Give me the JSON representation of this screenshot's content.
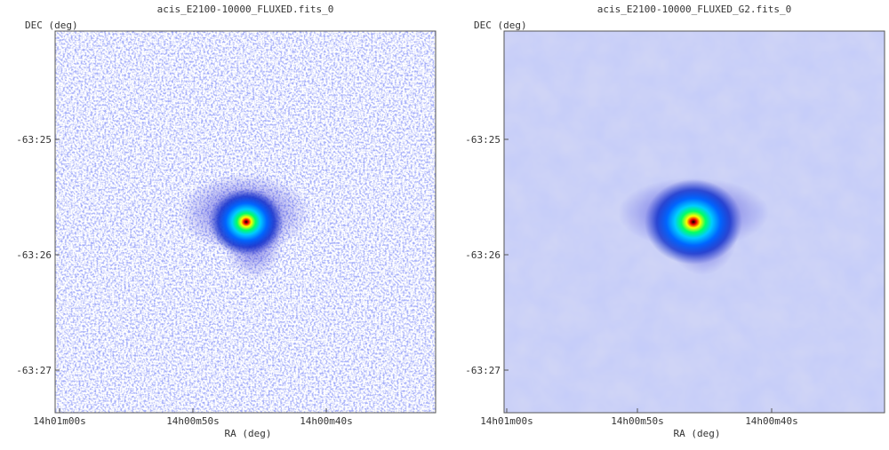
{
  "panels": [
    {
      "title": "acis_E2100-10000_FLUXED.fits_0",
      "y_label": "DEC (deg)",
      "x_label": "RA (deg)",
      "y_ticks": [
        "-63:25",
        "-63:26",
        "-63:27"
      ],
      "x_ticks": [
        "14h01m00s",
        "14h00m50s",
        "14h00m40s"
      ]
    },
    {
      "title": "acis_E2100-10000_FLUXED_G2.fits_0",
      "y_label": "DEC (deg)",
      "x_label": "RA (deg)",
      "y_ticks": [
        "-63:25",
        "-63:26",
        "-63:27"
      ],
      "x_ticks": [
        "14h01m00s",
        "14h00m50s",
        "14h00m40s"
      ]
    }
  ]
}
